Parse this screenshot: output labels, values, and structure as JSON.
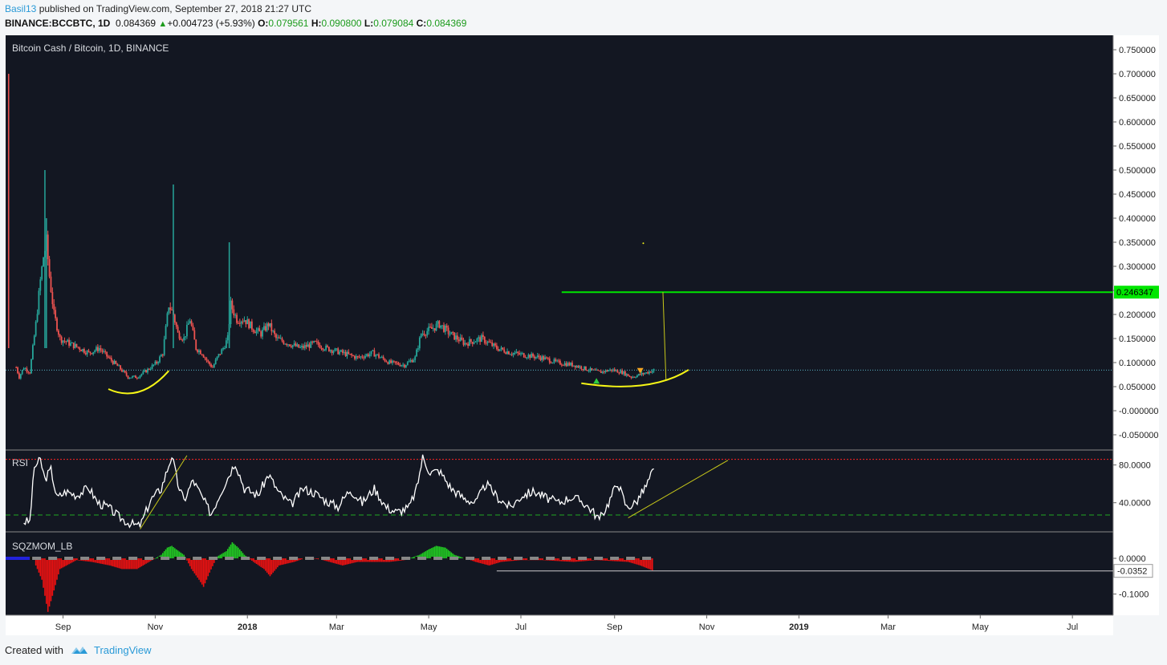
{
  "header": {
    "publisher": "Basil13",
    "published_text": "published on TradingView.com, September 27, 2018 21:27 UTC",
    "symbol": "BINANCE:BCCBTC, 1D",
    "last": "0.084369",
    "change": "+0.004723 (+5.93%)",
    "o_label": "O:",
    "o_value": "0.079561",
    "h_label": "H:",
    "h_value": "0.090800",
    "l_label": "L:",
    "l_value": "0.079084",
    "c_label": "C:",
    "c_value": "0.084369"
  },
  "footer": {
    "created_with": "Created with",
    "brand": "TradingView"
  },
  "colors": {
    "background": "#131722",
    "up": "#26a69a",
    "down": "#ef5350",
    "level": "#00e600",
    "annotation": "#f5f516",
    "rsi_line": "#ffffff",
    "rsi_overbought": "#ff2222",
    "rsi_oversold": "#22aa22"
  },
  "chart_data": [
    {
      "type": "candlestick",
      "title": "Bitcoin Cash / Bitcoin, 1D, BINANCE",
      "x_ticks": [
        "Sep",
        "Nov",
        "2018",
        "Mar",
        "May",
        "Jul",
        "Sep",
        "Nov",
        "2019",
        "Mar",
        "May",
        "Jul"
      ],
      "y_ticks": [
        "0.750000",
        "0.700000",
        "0.650000",
        "0.600000",
        "0.550000",
        "0.500000",
        "0.450000",
        "0.400000",
        "0.350000",
        "0.300000",
        "0.250000",
        "0.200000",
        "0.150000",
        "0.100000",
        "0.050000",
        "-0.000000",
        "-0.050000"
      ],
      "ylim": [
        -0.08,
        0.78
      ],
      "x_range": [
        "2017-07-25",
        "2019-07-28"
      ],
      "horizontal_level": {
        "value": 0.246347,
        "label": "0.246347",
        "from": "2018-07-28"
      },
      "current_price_line": 0.084369,
      "series": [
        {
          "name": "BCCBTC",
          "approx_close": [
            [
              "2017-08-01",
              0.09
            ],
            [
              "2017-08-03",
              0.07
            ],
            [
              "2017-08-06",
              0.09
            ],
            [
              "2017-08-10",
              0.08
            ],
            [
              "2017-08-14",
              0.18
            ],
            [
              "2017-08-17",
              0.27
            ],
            [
              "2017-08-19",
              0.32
            ],
            [
              "2017-08-21",
              0.35
            ],
            [
              "2017-08-23",
              0.28
            ],
            [
              "2017-08-26",
              0.2
            ],
            [
              "2017-08-30",
              0.15
            ],
            [
              "2017-09-05",
              0.14
            ],
            [
              "2017-09-12",
              0.13
            ],
            [
              "2017-09-18",
              0.12
            ],
            [
              "2017-09-25",
              0.13
            ],
            [
              "2017-10-01",
              0.11
            ],
            [
              "2017-10-08",
              0.09
            ],
            [
              "2017-10-14",
              0.07
            ],
            [
              "2017-10-20",
              0.07
            ],
            [
              "2017-10-27",
              0.085
            ],
            [
              "2017-11-02",
              0.1
            ],
            [
              "2017-11-06",
              0.12
            ],
            [
              "2017-11-10",
              0.22
            ],
            [
              "2017-11-13",
              0.2
            ],
            [
              "2017-11-16",
              0.16
            ],
            [
              "2017-11-20",
              0.15
            ],
            [
              "2017-11-24",
              0.19
            ],
            [
              "2017-11-28",
              0.13
            ],
            [
              "2017-12-02",
              0.12
            ],
            [
              "2017-12-06",
              0.1
            ],
            [
              "2017-12-09",
              0.09
            ],
            [
              "2017-12-12",
              0.11
            ],
            [
              "2017-12-16",
              0.13
            ],
            [
              "2017-12-19",
              0.15
            ],
            [
              "2017-12-21",
              0.22
            ],
            [
              "2017-12-25",
              0.19
            ],
            [
              "2017-12-30",
              0.19
            ],
            [
              "2018-01-05",
              0.17
            ],
            [
              "2018-01-10",
              0.16
            ],
            [
              "2018-01-15",
              0.18
            ],
            [
              "2018-01-20",
              0.15
            ],
            [
              "2018-01-28",
              0.14
            ],
            [
              "2018-02-05",
              0.13
            ],
            [
              "2018-02-15",
              0.14
            ],
            [
              "2018-02-22",
              0.13
            ],
            [
              "2018-03-05",
              0.12
            ],
            [
              "2018-03-15",
              0.11
            ],
            [
              "2018-03-25",
              0.12
            ],
            [
              "2018-04-05",
              0.1
            ],
            [
              "2018-04-15",
              0.095
            ],
            [
              "2018-04-22",
              0.11
            ],
            [
              "2018-04-26",
              0.16
            ],
            [
              "2018-05-03",
              0.17
            ],
            [
              "2018-05-08",
              0.18
            ],
            [
              "2018-05-15",
              0.16
            ],
            [
              "2018-05-25",
              0.14
            ],
            [
              "2018-06-05",
              0.15
            ],
            [
              "2018-06-15",
              0.13
            ],
            [
              "2018-06-25",
              0.12
            ],
            [
              "2018-07-05",
              0.115
            ],
            [
              "2018-07-15",
              0.11
            ],
            [
              "2018-07-25",
              0.1
            ],
            [
              "2018-08-05",
              0.095
            ],
            [
              "2018-08-15",
              0.085
            ],
            [
              "2018-08-22",
              0.08
            ],
            [
              "2018-08-30",
              0.085
            ],
            [
              "2018-09-06",
              0.08
            ],
            [
              "2018-09-12",
              0.07
            ],
            [
              "2018-09-18",
              0.075
            ],
            [
              "2018-09-23",
              0.08
            ],
            [
              "2018-09-27",
              0.084369
            ]
          ]
        }
      ],
      "markers": [
        {
          "date": "2018-08-20",
          "shape": "triangle-up",
          "color": "#2ecc40"
        },
        {
          "date": "2018-09-18",
          "shape": "triangle-down",
          "color": "#f5a623"
        }
      ],
      "annotations": [
        "curved arc under the 2017-10 low",
        "curved arc under the 2018-08 to 2018-09 base extending to Oct 2018",
        "vertical projection line from 0.246347 down to the base",
        "small dot near 0.35 in Sep 2018"
      ]
    },
    {
      "type": "line",
      "title": "RSI",
      "y_ticks": [
        "80.0000",
        "40.0000"
      ],
      "ylim": [
        10,
        95
      ],
      "levels": [
        {
          "value": 86,
          "color": "#ff2222",
          "style": "dotted"
        },
        {
          "value": 27,
          "color": "#22aa22",
          "style": "dashed"
        }
      ],
      "series": [
        {
          "name": "RSI",
          "values": [
            [
              "2017-08-06",
              20
            ],
            [
              "2017-08-10",
              20
            ],
            [
              "2017-08-13",
              78
            ],
            [
              "2017-08-17",
              85
            ],
            [
              "2017-08-20",
              65
            ],
            [
              "2017-08-24",
              75
            ],
            [
              "2017-08-28",
              45
            ],
            [
              "2017-09-03",
              52
            ],
            [
              "2017-09-10",
              48
            ],
            [
              "2017-09-18",
              56
            ],
            [
              "2017-09-24",
              40
            ],
            [
              "2017-10-01",
              35
            ],
            [
              "2017-10-08",
              25
            ],
            [
              "2017-10-15",
              18
            ],
            [
              "2017-10-22",
              15
            ],
            [
              "2017-10-29",
              43
            ],
            [
              "2017-11-05",
              55
            ],
            [
              "2017-11-09",
              75
            ],
            [
              "2017-11-12",
              90
            ],
            [
              "2017-11-16",
              60
            ],
            [
              "2017-11-20",
              42
            ],
            [
              "2017-11-26",
              64
            ],
            [
              "2017-12-02",
              46
            ],
            [
              "2017-12-08",
              28
            ],
            [
              "2017-12-14",
              50
            ],
            [
              "2017-12-20",
              70
            ],
            [
              "2017-12-24",
              83
            ],
            [
              "2017-12-30",
              55
            ],
            [
              "2018-01-08",
              48
            ],
            [
              "2018-01-15",
              70
            ],
            [
              "2018-01-22",
              50
            ],
            [
              "2018-01-30",
              38
            ],
            [
              "2018-02-07",
              55
            ],
            [
              "2018-02-15",
              50
            ],
            [
              "2018-02-22",
              42
            ],
            [
              "2018-03-02",
              36
            ],
            [
              "2018-03-10",
              54
            ],
            [
              "2018-03-18",
              40
            ],
            [
              "2018-03-26",
              55
            ],
            [
              "2018-04-03",
              35
            ],
            [
              "2018-04-10",
              30
            ],
            [
              "2018-04-18",
              35
            ],
            [
              "2018-04-23",
              55
            ],
            [
              "2018-04-27",
              88
            ],
            [
              "2018-05-02",
              72
            ],
            [
              "2018-05-08",
              74
            ],
            [
              "2018-05-16",
              55
            ],
            [
              "2018-05-24",
              45
            ],
            [
              "2018-06-01",
              40
            ],
            [
              "2018-06-08",
              60
            ],
            [
              "2018-06-16",
              45
            ],
            [
              "2018-06-24",
              35
            ],
            [
              "2018-07-02",
              48
            ],
            [
              "2018-07-10",
              52
            ],
            [
              "2018-07-18",
              45
            ],
            [
              "2018-07-26",
              40
            ],
            [
              "2018-08-03",
              46
            ],
            [
              "2018-08-10",
              42
            ],
            [
              "2018-08-17",
              32
            ],
            [
              "2018-08-22",
              22
            ],
            [
              "2018-08-28",
              40
            ],
            [
              "2018-09-03",
              62
            ],
            [
              "2018-09-09",
              35
            ],
            [
              "2018-09-15",
              40
            ],
            [
              "2018-09-22",
              58
            ],
            [
              "2018-09-27",
              76
            ]
          ]
        }
      ]
    },
    {
      "type": "bar",
      "title": "SQZMOM_LB",
      "y_ticks": [
        "0.0000",
        "-0.1000"
      ],
      "ylim": [
        -0.155,
        0.045
      ],
      "last_value_label": "-0.0352",
      "series": [
        {
          "name": "SQZMOM_LB",
          "values": [
            [
              "2017-08-14",
              -0.02
            ],
            [
              "2017-08-18",
              -0.06
            ],
            [
              "2017-08-22",
              -0.15
            ],
            [
              "2017-08-26",
              -0.09
            ],
            [
              "2017-08-30",
              -0.03
            ],
            [
              "2017-09-10",
              -0.005
            ],
            [
              "2017-09-20",
              -0.01
            ],
            [
              "2017-10-02",
              -0.02
            ],
            [
              "2017-10-10",
              -0.03
            ],
            [
              "2017-10-20",
              -0.03
            ],
            [
              "2017-10-28",
              -0.01
            ],
            [
              "2017-11-05",
              0.01
            ],
            [
              "2017-11-09",
              0.03
            ],
            [
              "2017-11-12",
              0.035
            ],
            [
              "2017-11-15",
              0.025
            ],
            [
              "2017-11-20",
              0.01
            ],
            [
              "2017-11-25",
              -0.03
            ],
            [
              "2017-11-30",
              -0.06
            ],
            [
              "2017-12-03",
              -0.08
            ],
            [
              "2017-12-07",
              -0.04
            ],
            [
              "2017-12-12",
              0.005
            ],
            [
              "2017-12-18",
              0.02
            ],
            [
              "2017-12-22",
              0.045
            ],
            [
              "2017-12-26",
              0.03
            ],
            [
              "2017-12-30",
              0.01
            ],
            [
              "2018-01-05",
              -0.01
            ],
            [
              "2018-01-12",
              -0.03
            ],
            [
              "2018-01-16",
              -0.05
            ],
            [
              "2018-01-22",
              -0.02
            ],
            [
              "2018-02-01",
              -0.01
            ],
            [
              "2018-02-10",
              0.003
            ],
            [
              "2018-02-20",
              -0.005
            ],
            [
              "2018-03-05",
              -0.02
            ],
            [
              "2018-03-15",
              -0.01
            ],
            [
              "2018-04-05",
              -0.01
            ],
            [
              "2018-04-15",
              -0.005
            ],
            [
              "2018-04-25",
              0.01
            ],
            [
              "2018-05-01",
              0.025
            ],
            [
              "2018-05-06",
              0.035
            ],
            [
              "2018-05-12",
              0.03
            ],
            [
              "2018-05-18",
              0.01
            ],
            [
              "2018-06-01",
              -0.01
            ],
            [
              "2018-06-10",
              -0.02
            ],
            [
              "2018-06-18",
              -0.01
            ],
            [
              "2018-07-01",
              -0.005
            ],
            [
              "2018-07-15",
              -0.005
            ],
            [
              "2018-08-05",
              -0.01
            ],
            [
              "2018-08-20",
              -0.005
            ],
            [
              "2018-09-10",
              -0.01
            ],
            [
              "2018-09-18",
              -0.02
            ],
            [
              "2018-09-27",
              -0.0352
            ]
          ]
        }
      ]
    }
  ]
}
